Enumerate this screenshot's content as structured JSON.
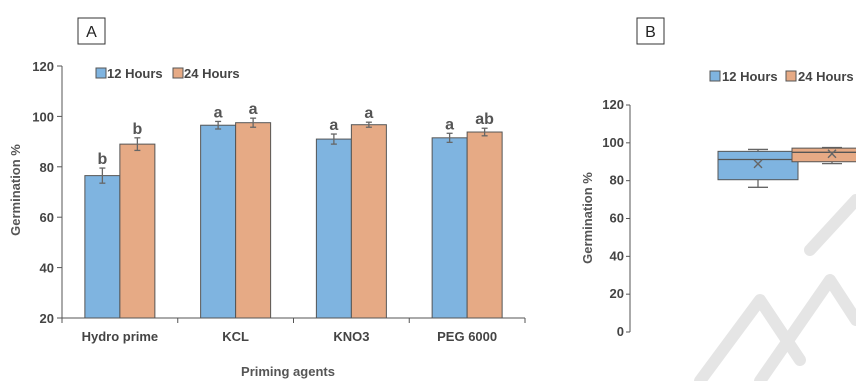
{
  "panels": {
    "a_label": "A",
    "b_label": "B"
  },
  "colors": {
    "series_12h": "#7fb4e0",
    "series_24h": "#e6aa85",
    "bar_stroke": "#555555"
  },
  "chart_data": [
    {
      "type": "bar",
      "panel": "A",
      "categories": [
        "Hydro prime",
        "KCL",
        "KNO3",
        "PEG 6000"
      ],
      "series": [
        {
          "name": "12 Hours",
          "values": [
            76.5,
            96.5,
            91,
            91.5
          ],
          "errors": [
            3,
            1.5,
            2,
            1.8
          ],
          "labels": [
            "b",
            "a",
            "a",
            "a"
          ]
        },
        {
          "name": "24 Hours",
          "values": [
            89,
            97.5,
            96.7,
            93.8
          ],
          "errors": [
            2.5,
            1.8,
            1.0,
            1.5
          ],
          "labels": [
            "b",
            "a",
            "a",
            "ab"
          ]
        }
      ],
      "xlabel": "Priming agents",
      "ylabel": "Germination %",
      "ylim": [
        20,
        120
      ],
      "yticks": [
        20,
        40,
        60,
        80,
        100,
        120
      ],
      "legend": "top-left",
      "grid": false
    },
    {
      "type": "box",
      "panel": "B",
      "series": [
        {
          "name": "12 Hours",
          "min": 76.5,
          "q1": 80.5,
          "median": 91.2,
          "q3": 95.5,
          "max": 96.5,
          "mean": 88.9
        },
        {
          "name": "24 Hours",
          "min": 89,
          "q1": 90,
          "median": 95,
          "q3": 97.2,
          "max": 97.5,
          "mean": 94.2
        }
      ],
      "ylabel": "Germination %",
      "ylim": [
        0,
        120
      ],
      "yticks": [
        0,
        20,
        40,
        60,
        80,
        100,
        120
      ],
      "legend": "top",
      "grid": false
    }
  ]
}
